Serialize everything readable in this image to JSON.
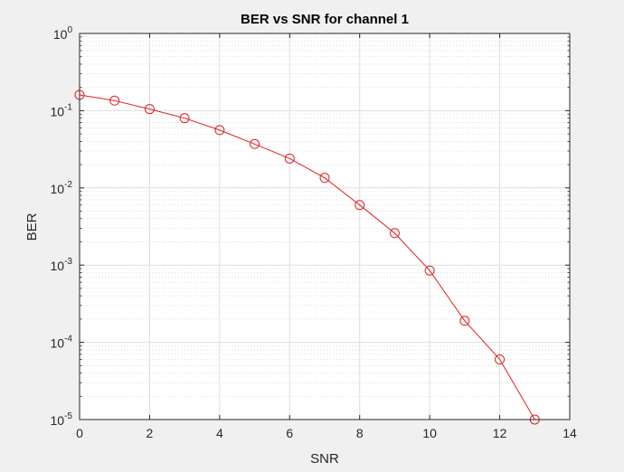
{
  "chart_data": {
    "type": "line",
    "title": "BER vs SNR for channel 1",
    "xlabel": "SNR",
    "ylabel": "BER",
    "xlim": [
      0,
      14
    ],
    "ylim": [
      1e-05,
      1
    ],
    "yscale": "log",
    "grid": true,
    "minor_grid": true,
    "xticks": [
      "0",
      "2",
      "4",
      "6",
      "8",
      "10",
      "12",
      "14"
    ],
    "yticks": [
      {
        "base": "10",
        "exp": "0"
      },
      {
        "base": "10",
        "exp": "-1"
      },
      {
        "base": "10",
        "exp": "-2"
      },
      {
        "base": "10",
        "exp": "-3"
      },
      {
        "base": "10",
        "exp": "-4"
      },
      {
        "base": "10",
        "exp": "-5"
      }
    ],
    "series": [
      {
        "color": "#e02020",
        "marker": "circle",
        "x": [
          0,
          1,
          2,
          3,
          4,
          5,
          6,
          7,
          8,
          9,
          10,
          11,
          12,
          13
        ],
        "y": [
          0.16,
          0.135,
          0.105,
          0.08,
          0.056,
          0.037,
          0.024,
          0.0135,
          0.006,
          0.0026,
          0.00085,
          0.00019,
          6e-05,
          1e-05
        ]
      }
    ]
  }
}
